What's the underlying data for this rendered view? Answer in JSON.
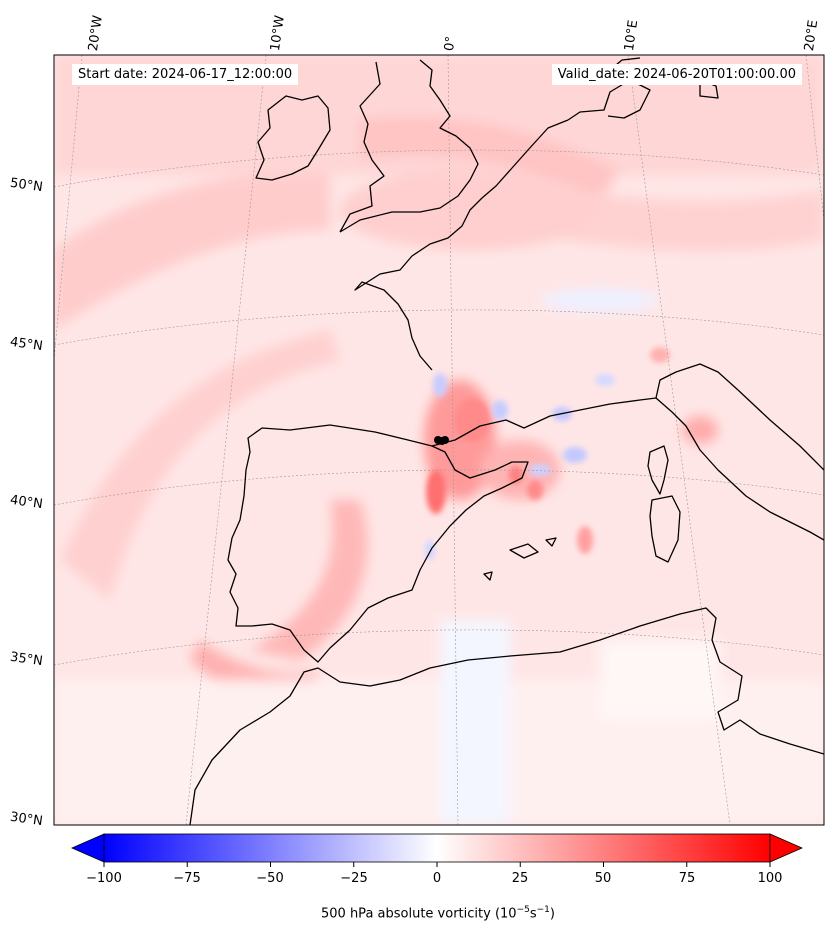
{
  "header": {
    "start_date": "Start date: 2024-06-17_12:00:00",
    "valid_date": "Valid_date: 2024-06-20T01:00:00.00"
  },
  "longitude_labels": [
    "20°W",
    "10°W",
    "0°",
    "10°E",
    "20°E"
  ],
  "latitude_labels": [
    "50°N",
    "45°N",
    "40°N",
    "35°N",
    "30°N"
  ],
  "colorbar": {
    "title_prefix": "500 hPa absolute vorticity (10",
    "title_exp1": "−5",
    "title_mid": "s",
    "title_exp2": "−1",
    "title_suffix": ")",
    "ticks": [
      "−100",
      "−75",
      "−50",
      "−25",
      "0",
      "25",
      "50",
      "75",
      "100"
    ],
    "min": -100,
    "max": 100,
    "colormap": "bwr",
    "extend": "both"
  },
  "colors": {
    "negative": "#0000ff",
    "neutral": "#ffffff",
    "positive": "#ff0000",
    "coastline": "#000000",
    "gridline": "#999999"
  },
  "marker": {
    "label": "",
    "color": "#000000"
  }
}
